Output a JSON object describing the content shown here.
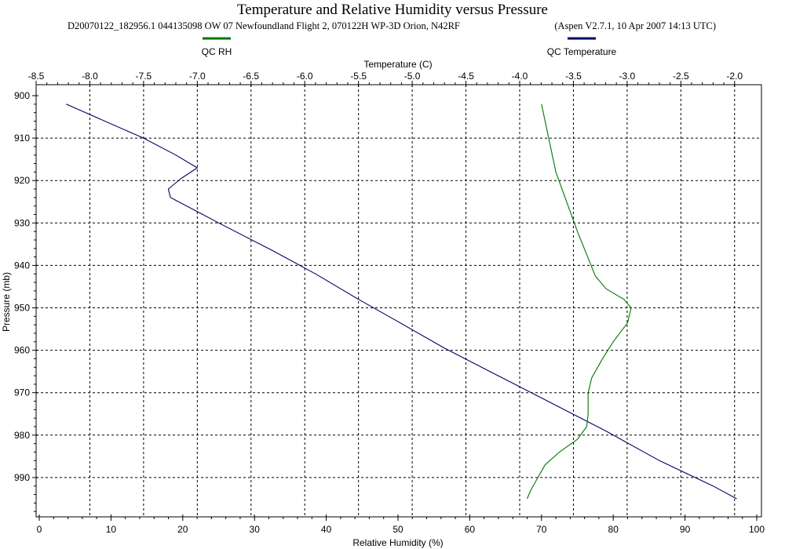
{
  "chart_data": {
    "type": "line",
    "title": "Temperature and Relative Humidity versus Pressure",
    "subtitle_left": "D20070122_182956.1 044135098 OW 07 Newfoundland Flight 2, 070122H WP-3D Orion, N42RF",
    "subtitle_right": "(Aspen V2.7.1, 10 Apr 2007  14:13 UTC)",
    "top_axis": {
      "label": "Temperature (C)",
      "range": [
        -8.5,
        -1.75
      ],
      "ticks": [
        -8.5,
        -8.0,
        -7.5,
        -7.0,
        -6.5,
        -6.0,
        -5.5,
        -5.0,
        -4.5,
        -4.0,
        -3.5,
        -3.0,
        -2.5,
        -2.0
      ],
      "tick_labels": [
        "-8.5",
        "-8.0",
        "-7.5",
        "-7.0",
        "-6.5",
        "-6.0",
        "-5.5",
        "-5.0",
        "-4.5",
        "-4.0",
        "-3.5",
        "-3.0",
        "-2.5",
        "-2.0"
      ]
    },
    "bottom_axis": {
      "label": "Relative Humidity (%)",
      "range": [
        0,
        100
      ],
      "ticks": [
        0,
        10,
        20,
        30,
        40,
        50,
        60,
        70,
        80,
        90,
        100
      ],
      "tick_labels": [
        "0",
        "10",
        "20",
        "30",
        "40",
        "50",
        "60",
        "70",
        "80",
        "90",
        "100"
      ]
    },
    "left_axis": {
      "label": "Pressure (mb)",
      "range": [
        898,
        997
      ],
      "inverted": true,
      "ticks": [
        900,
        910,
        920,
        930,
        940,
        950,
        960,
        970,
        980,
        990
      ],
      "tick_labels": [
        "900",
        "910",
        "920",
        "930",
        "940",
        "950",
        "960",
        "970",
        "980",
        "990"
      ]
    },
    "grid": true,
    "legend": [
      {
        "name": "QC RH",
        "color": "#007700"
      },
      {
        "name": "QC Temperature",
        "color": "#000066"
      }
    ],
    "series": [
      {
        "name": "QC Temperature",
        "axis": "top",
        "color": "#000066",
        "points": [
          [
            -8.22,
            902
          ],
          [
            -7.5,
            910
          ],
          [
            -7.2,
            914
          ],
          [
            -7.0,
            917
          ],
          [
            -7.15,
            919.5
          ],
          [
            -7.27,
            922
          ],
          [
            -7.25,
            924
          ],
          [
            -6.8,
            930
          ],
          [
            -6.3,
            936.5
          ],
          [
            -5.9,
            942
          ],
          [
            -5.5,
            948
          ],
          [
            -5.15,
            953
          ],
          [
            -4.7,
            959.5
          ],
          [
            -4.2,
            966
          ],
          [
            -3.7,
            972.5
          ],
          [
            -3.2,
            979
          ],
          [
            -2.7,
            986
          ],
          [
            -2.2,
            992
          ],
          [
            -1.98,
            995
          ]
        ]
      },
      {
        "name": "QC RH",
        "axis": "bottom",
        "color": "#007700",
        "points": [
          [
            70.0,
            902
          ],
          [
            72.0,
            918
          ],
          [
            75.0,
            932
          ],
          [
            77.5,
            942.5
          ],
          [
            79.0,
            945.5
          ],
          [
            81.5,
            948
          ],
          [
            82.5,
            950
          ],
          [
            82.0,
            953.5
          ],
          [
            80.0,
            958
          ],
          [
            78.5,
            962
          ],
          [
            77.0,
            966.5
          ],
          [
            76.5,
            970
          ],
          [
            76.5,
            975
          ],
          [
            76.3,
            978
          ],
          [
            75.0,
            981
          ],
          [
            72.5,
            984
          ],
          [
            70.5,
            987
          ],
          [
            69.5,
            990
          ],
          [
            68.5,
            993
          ],
          [
            68.0,
            995
          ]
        ]
      }
    ]
  }
}
